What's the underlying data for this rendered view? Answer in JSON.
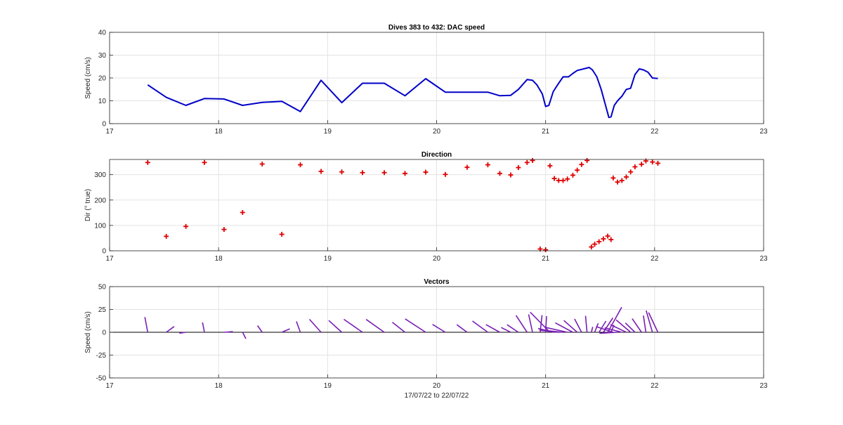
{
  "chart_data": [
    {
      "type": "line",
      "title": "Dives 383 to 432: DAC speed",
      "xlabel": "",
      "ylabel": "Speed (cm/s)",
      "xlim": [
        17,
        23
      ],
      "ylim": [
        0,
        40
      ],
      "xticks": [
        "17",
        "18",
        "19",
        "20",
        "21",
        "22",
        "23"
      ],
      "yticks": [
        "0",
        "10",
        "20",
        "30",
        "40"
      ],
      "grid": true,
      "color": "#0000c8",
      "series": [
        {
          "x": [
            17.35,
            17.52,
            17.7,
            17.87,
            18.05,
            18.22,
            18.4,
            18.58,
            18.75,
            18.94,
            19.13,
            19.32,
            19.52,
            19.71,
            19.9,
            20.08,
            20.28,
            20.47,
            20.58,
            20.68,
            20.75,
            20.83,
            20.88,
            20.92,
            20.97,
            21.0,
            21.03,
            21.07,
            21.11,
            21.16,
            21.21,
            21.25,
            21.29,
            21.35,
            21.4,
            21.43,
            21.47,
            21.51,
            21.55,
            21.58,
            21.6,
            21.63,
            21.66,
            21.7,
            21.74,
            21.78,
            21.82,
            21.86,
            21.9,
            21.94,
            21.98,
            22.03
          ],
          "y": [
            17,
            11.5,
            8,
            11,
            10.8,
            8,
            9.3,
            9.8,
            5.3,
            19,
            9.2,
            17.7,
            17.7,
            12.2,
            19.7,
            13.8,
            13.8,
            13.8,
            12.2,
            12.4,
            15,
            19.3,
            19,
            17,
            13,
            7.5,
            8,
            14,
            17,
            20.5,
            20.5,
            22,
            23.3,
            24,
            24.6,
            23.5,
            20.5,
            15,
            8,
            2.7,
            3,
            8,
            10,
            12,
            15,
            15.5,
            21.5,
            24,
            23.5,
            22.5,
            20,
            19.8
          ]
        }
      ]
    },
    {
      "type": "scatter",
      "title": "Direction",
      "xlabel": "",
      "ylabel": "Dir (° true)",
      "xlim": [
        17,
        23
      ],
      "ylim": [
        0,
        360
      ],
      "xticks": [
        "17",
        "18",
        "19",
        "20",
        "21",
        "22",
        "23"
      ],
      "yticks": [
        "0",
        "100",
        "200",
        "300"
      ],
      "grid": true,
      "marker": "+",
      "color": "#e00000",
      "series": [
        {
          "x": [
            17.35,
            17.52,
            17.7,
            17.87,
            18.05,
            18.22,
            18.4,
            18.58,
            18.75,
            18.94,
            19.13,
            19.32,
            19.52,
            19.71,
            19.9,
            20.08,
            20.28,
            20.47,
            20.58,
            20.68,
            20.75,
            20.83,
            20.88,
            20.95,
            21.0,
            21.04,
            21.08,
            21.12,
            21.16,
            21.2,
            21.25,
            21.29,
            21.33,
            21.38,
            21.42,
            21.45,
            21.49,
            21.53,
            21.57,
            21.6,
            21.62,
            21.66,
            21.7,
            21.74,
            21.78,
            21.82,
            21.88,
            21.92,
            21.98,
            22.03
          ],
          "y": [
            348,
            57,
            96,
            348,
            84,
            151,
            342,
            65,
            339,
            313,
            311,
            308,
            308,
            305,
            310,
            301,
            329,
            339,
            305,
            299,
            328,
            348,
            356,
            7,
            4,
            335,
            285,
            277,
            277,
            283,
            298,
            318,
            340,
            356,
            15,
            26,
            36,
            47,
            58,
            44,
            287,
            271,
            277,
            291,
            311,
            331,
            341,
            354,
            350,
            345
          ]
        }
      ]
    },
    {
      "type": "line",
      "title": "Vectors",
      "xlabel": "17/07/22 to 22/07/22",
      "ylabel": "Speed (cm/s)",
      "xlim": [
        17,
        23
      ],
      "ylim": [
        -50,
        50
      ],
      "xticks": [
        "17",
        "18",
        "19",
        "20",
        "21",
        "22",
        "23"
      ],
      "yticks": [
        "-50",
        "-25",
        "0",
        "25",
        "50"
      ],
      "grid": true,
      "color": "#7a1fb5",
      "series": [
        {
          "x": [
            17.35,
            17.52,
            17.7,
            17.87,
            18.05,
            18.22,
            18.4,
            18.58,
            18.75,
            18.94,
            19.13,
            19.32,
            19.52,
            19.71,
            19.9,
            20.08,
            20.28,
            20.47,
            20.58,
            20.68,
            20.75,
            20.83,
            20.88,
            20.95,
            21.0,
            21.04,
            21.08,
            21.12,
            21.16,
            21.2,
            21.25,
            21.29,
            21.33,
            21.38,
            21.42,
            21.45,
            21.49,
            21.53,
            21.57,
            21.6,
            21.62,
            21.66,
            21.7,
            21.74,
            21.78,
            21.82,
            21.88,
            21.92,
            21.98,
            22.03
          ],
          "u": [
            -3.5,
            9.6,
            -7.9,
            -2.3,
            10.7,
            4.0,
            -5.7,
            9.7,
            -4.8,
            -14.1,
            -15.8,
            -22.7,
            -22.1,
            -15.4,
            -25.0,
            -15.6,
            -12.5,
            -18.7,
            -16.9,
            -11.6,
            -13.7,
            -13.5,
            -4.7,
            2.3,
            1.1,
            -24.0,
            -19.7,
            -23.2,
            -28.6,
            -28.0,
            -21.4,
            -16.3,
            -8.5,
            -1.8,
            1.6,
            4.3,
            8.5,
            11.5,
            17.0,
            3.6,
            -20.8,
            -22.0,
            -21.1,
            -19.3,
            -17.6,
            -11.7,
            -11.4,
            -3.0,
            -7.6,
            -11.3
          ],
          "v": [
            16.6,
            6.3,
            -1.0,
            10.8,
            0.8,
            -7.0,
            7.3,
            3.8,
            11.9,
            14.2,
            12.9,
            14.2,
            14.1,
            10.9,
            14.7,
            8.6,
            8.3,
            12.3,
            8.4,
            5.2,
            8.3,
            18.5,
            19.6,
            18.8,
            17.6,
            22.0,
            4.1,
            2.2,
            2.7,
            5.6,
            10.3,
            12.9,
            14.6,
            17.9,
            5.9,
            9.8,
            12.3,
            15.8,
            27.5,
            8.0,
            6.2,
            -1.1,
            4.9,
            8.4,
            13.5,
            10.2,
            14.9,
            18.3,
            23.8,
            21.6
          ]
        }
      ]
    }
  ]
}
